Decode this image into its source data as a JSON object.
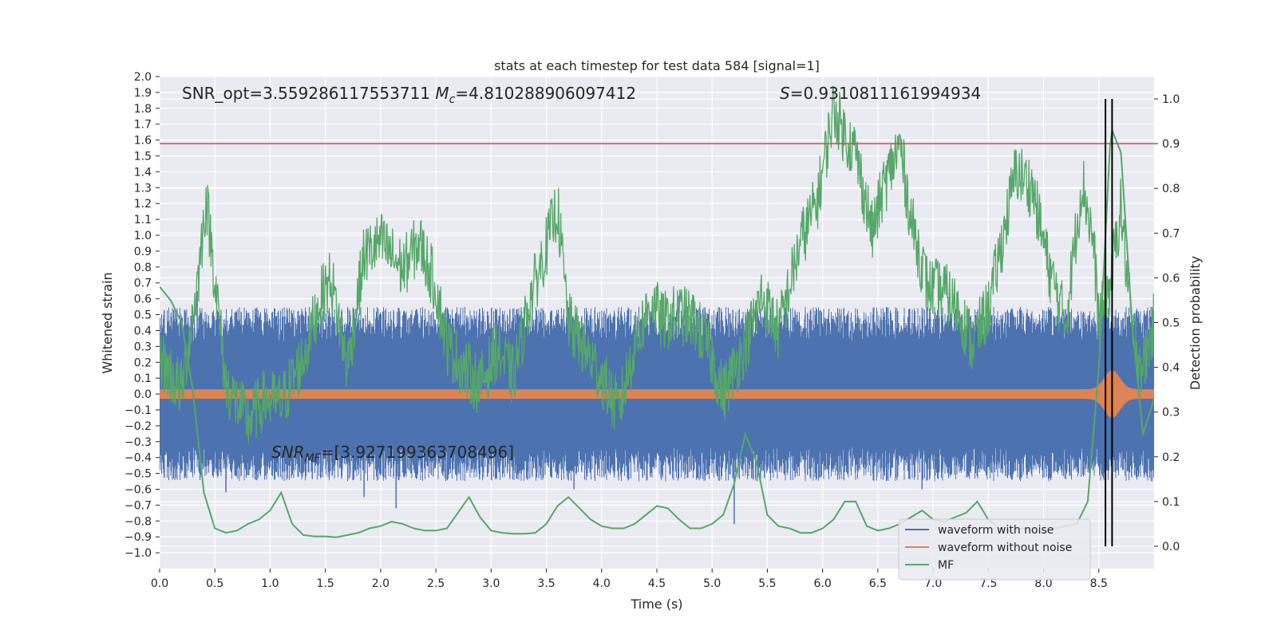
{
  "chart_data": {
    "type": "line",
    "title": "stats at each timestep for test data 584 [signal=1]",
    "xlabel": "Time (s)",
    "ylabel_left": "Whitened strain",
    "ylabel_right": "Detection probability",
    "xlim": [
      0.0,
      9.0
    ],
    "ylim_left": [
      -1.1,
      2.0
    ],
    "ylim_right": [
      -0.05,
      1.05
    ],
    "x_ticks": [
      "0.0",
      "0.5",
      "1.0",
      "1.5",
      "2.0",
      "2.5",
      "3.0",
      "3.5",
      "4.0",
      "4.5",
      "5.0",
      "5.5",
      "6.0",
      "6.5",
      "7.0",
      "7.5",
      "8.0",
      "8.5"
    ],
    "y_left_ticks": [
      "2.0",
      "1.9",
      "1.8",
      "1.7",
      "1.6",
      "1.5",
      "1.4",
      "1.3",
      "1.2",
      "1.1",
      "1.0",
      "0.9",
      "0.8",
      "0.7",
      "0.6",
      "0.5",
      "0.4",
      "0.3",
      "0.2",
      "0.1",
      "0.0",
      "−0.1",
      "−0.2",
      "−0.3",
      "−0.4",
      "−0.5",
      "−0.6",
      "−0.7",
      "−0.8",
      "−0.9",
      "−1.0"
    ],
    "y_right_ticks": [
      "0.0",
      "0.1",
      "0.2",
      "0.3",
      "0.4",
      "0.5",
      "0.6",
      "0.7",
      "0.8",
      "0.9",
      "1.0"
    ],
    "annotations": {
      "snr_opt": "SNR_opt=3.559286117553711",
      "mc_symbol": "M",
      "mc_subscript": "c",
      "mc_value": "=4.810288906097412",
      "s_symbol": "S",
      "s_value": "=0.9310811161994934",
      "snr_mf_symbol": "SNR",
      "snr_mf_subscript": "MF",
      "snr_mf_value": "=[3.927199363708496]"
    },
    "threshold": {
      "value": 0.9,
      "axis": "right",
      "color": "#c44e52"
    },
    "vertical_markers": {
      "x": [
        8.56,
        8.62
      ],
      "color": "#000000"
    },
    "legend_position": "lower-right",
    "grid": true,
    "series": [
      {
        "name": "waveform with noise",
        "color": "#4c72b0",
        "axis": "left",
        "kind": "noise",
        "amplitude_range": [
          -0.55,
          0.55
        ],
        "outliers": [
          {
            "x": 0.34,
            "y": 0.65
          },
          {
            "x": 0.6,
            "y": -0.62
          },
          {
            "x": 1.85,
            "y": -0.65
          },
          {
            "x": 2.14,
            "y": -0.72
          },
          {
            "x": 4.7,
            "y": 0.62
          },
          {
            "x": 5.2,
            "y": -0.82
          },
          {
            "x": 3.75,
            "y": -0.6
          },
          {
            "x": 6.9,
            "y": -0.6
          }
        ]
      },
      {
        "name": "waveform without noise",
        "color": "#dd8452",
        "axis": "left",
        "kind": "chirp",
        "base_amplitude": 0.03,
        "peak_time": 8.62,
        "peak_amplitude": 0.12
      },
      {
        "name": "MF",
        "color": "#55a868",
        "axis": "right",
        "kind": "smooth",
        "x": [
          0.0,
          0.1,
          0.2,
          0.3,
          0.4,
          0.5,
          0.6,
          0.7,
          0.8,
          0.9,
          1.0,
          1.1,
          1.2,
          1.3,
          1.4,
          1.5,
          1.6,
          1.7,
          1.8,
          1.9,
          2.0,
          2.1,
          2.2,
          2.3,
          2.4,
          2.5,
          2.6,
          2.7,
          2.8,
          2.9,
          3.0,
          3.1,
          3.2,
          3.3,
          3.4,
          3.5,
          3.6,
          3.7,
          3.8,
          3.9,
          4.0,
          4.1,
          4.2,
          4.3,
          4.4,
          4.5,
          4.6,
          4.7,
          4.8,
          4.9,
          5.0,
          5.1,
          5.2,
          5.3,
          5.4,
          5.5,
          5.6,
          5.7,
          5.8,
          5.9,
          6.0,
          6.1,
          6.2,
          6.3,
          6.4,
          6.5,
          6.6,
          6.7,
          6.8,
          6.9,
          7.0,
          7.1,
          7.2,
          7.3,
          7.4,
          7.5,
          7.6,
          7.7,
          7.8,
          7.9,
          8.0,
          8.1,
          8.2,
          8.3,
          8.4,
          8.5,
          8.6,
          8.62,
          8.7,
          8.8,
          8.9,
          9.0
        ],
        "y": [
          0.58,
          0.55,
          0.5,
          0.35,
          0.12,
          0.04,
          0.03,
          0.035,
          0.05,
          0.06,
          0.08,
          0.12,
          0.05,
          0.025,
          0.022,
          0.022,
          0.02,
          0.025,
          0.03,
          0.04,
          0.045,
          0.055,
          0.05,
          0.04,
          0.035,
          0.035,
          0.04,
          0.075,
          0.11,
          0.065,
          0.035,
          0.03,
          0.028,
          0.028,
          0.03,
          0.05,
          0.09,
          0.11,
          0.085,
          0.06,
          0.045,
          0.04,
          0.04,
          0.05,
          0.07,
          0.09,
          0.085,
          0.06,
          0.04,
          0.04,
          0.05,
          0.07,
          0.14,
          0.25,
          0.19,
          0.07,
          0.045,
          0.04,
          0.03,
          0.03,
          0.04,
          0.06,
          0.1,
          0.1,
          0.045,
          0.035,
          0.04,
          0.05,
          0.065,
          0.08,
          0.06,
          0.055,
          0.065,
          0.075,
          0.1,
          0.06,
          0.04,
          0.035,
          0.04,
          0.035,
          0.03,
          0.04,
          0.045,
          0.05,
          0.1,
          0.4,
          0.89,
          0.93,
          0.88,
          0.5,
          0.25,
          0.33
        ]
      },
      {
        "name": "",
        "color": "#55a868",
        "axis": "right",
        "kind": "noisy",
        "x": [
          0.0,
          0.2,
          0.35,
          0.42,
          0.5,
          0.6,
          0.8,
          0.95,
          1.1,
          1.3,
          1.45,
          1.55,
          1.7,
          1.85,
          2.0,
          2.2,
          2.35,
          2.5,
          2.6,
          2.75,
          2.9,
          3.05,
          3.2,
          3.35,
          3.5,
          3.6,
          3.7,
          3.85,
          4.0,
          4.15,
          4.3,
          4.45,
          4.55,
          4.7,
          4.85,
          5.0,
          5.1,
          5.3,
          5.45,
          5.6,
          5.8,
          5.95,
          6.1,
          6.2,
          6.3,
          6.45,
          6.55,
          6.7,
          6.8,
          6.95,
          7.1,
          7.25,
          7.35,
          7.5,
          7.6,
          7.75,
          7.9,
          8.05,
          8.2,
          8.35,
          8.45,
          8.5,
          8.6,
          8.7,
          8.8,
          8.9,
          9.0
        ],
        "y": [
          0.42,
          0.35,
          0.6,
          0.78,
          0.6,
          0.36,
          0.28,
          0.33,
          0.32,
          0.42,
          0.55,
          0.6,
          0.4,
          0.65,
          0.68,
          0.62,
          0.68,
          0.58,
          0.45,
          0.4,
          0.36,
          0.44,
          0.38,
          0.55,
          0.67,
          0.76,
          0.5,
          0.44,
          0.38,
          0.3,
          0.45,
          0.55,
          0.5,
          0.52,
          0.5,
          0.42,
          0.34,
          0.45,
          0.56,
          0.48,
          0.68,
          0.77,
          0.98,
          0.92,
          0.88,
          0.7,
          0.8,
          0.9,
          0.73,
          0.58,
          0.57,
          0.52,
          0.45,
          0.53,
          0.65,
          0.84,
          0.8,
          0.62,
          0.5,
          0.82,
          0.68,
          0.5,
          0.58,
          0.76,
          0.48,
          0.4,
          0.5
        ]
      }
    ]
  }
}
